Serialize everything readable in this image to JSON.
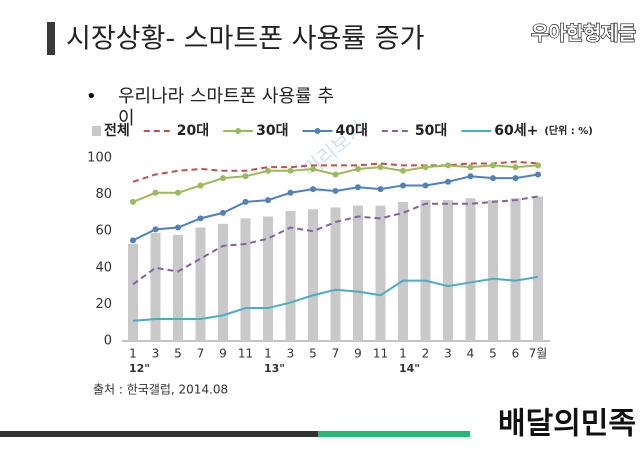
{
  "header": {
    "title": "시장상황- 스마트폰 사용률 증가",
    "logo": "우아한형제들"
  },
  "bullet": "우리나라 스마트폰 사용률 추이",
  "chart_data": {
    "type": "bar_line",
    "categories": [
      "1",
      "3",
      "5",
      "7",
      "9",
      "11",
      "1",
      "3",
      "5",
      "7",
      "9",
      "11",
      "1",
      "2",
      "3",
      "4",
      "5",
      "6",
      "7월"
    ],
    "year_labels": [
      "12\"",
      null,
      null,
      null,
      null,
      null,
      "13\"",
      null,
      null,
      null,
      null,
      null,
      "14\"",
      null,
      null,
      null,
      null,
      null,
      null
    ],
    "unit": "(단위 : %)",
    "watermark": "미리보기",
    "ylim": [
      0,
      100
    ],
    "yticks": [
      0,
      20,
      40,
      60,
      80,
      100
    ],
    "grid": false,
    "series": [
      {
        "name": "전체",
        "type": "bar",
        "color": "#c9c9c9",
        "values": [
          53,
          59,
          58,
          62,
          64,
          67,
          68,
          71,
          72,
          73,
          74,
          74,
          76,
          77,
          77,
          78,
          77,
          78,
          79
        ]
      },
      {
        "name": "20대",
        "type": "line",
        "color": "#c0504d",
        "dash": true,
        "markers": false,
        "values": [
          87,
          91,
          93,
          94,
          93,
          93,
          95,
          95,
          96,
          96,
          96,
          97,
          96,
          96,
          96,
          97,
          97,
          98,
          97
        ]
      },
      {
        "name": "30대",
        "type": "line",
        "color": "#9bbb59",
        "dash": false,
        "markers": true,
        "values": [
          76,
          81,
          81,
          85,
          89,
          90,
          93,
          93,
          94,
          91,
          94,
          95,
          93,
          95,
          96,
          95,
          96,
          95,
          96
        ]
      },
      {
        "name": "40대",
        "type": "line",
        "color": "#4f81bd",
        "dash": false,
        "markers": true,
        "values": [
          55,
          61,
          62,
          67,
          70,
          76,
          77,
          81,
          83,
          82,
          84,
          83,
          85,
          85,
          87,
          90,
          89,
          89,
          91
        ]
      },
      {
        "name": "50대",
        "type": "line",
        "color": "#8064a2",
        "dash": true,
        "markers": false,
        "values": [
          31,
          40,
          38,
          45,
          52,
          53,
          56,
          62,
          60,
          65,
          68,
          67,
          70,
          75,
          75,
          75,
          76,
          77,
          79
        ]
      },
      {
        "name": "60세+",
        "type": "line",
        "color": "#4bacc6",
        "dash": false,
        "markers": false,
        "values": [
          11,
          12,
          12,
          12,
          14,
          18,
          18,
          21,
          25,
          28,
          27,
          25,
          33,
          33,
          30,
          32,
          34,
          33,
          35
        ]
      }
    ]
  },
  "source": "출처 : 한국갤럽, 2014.08",
  "footer_logo": "배달의민족"
}
